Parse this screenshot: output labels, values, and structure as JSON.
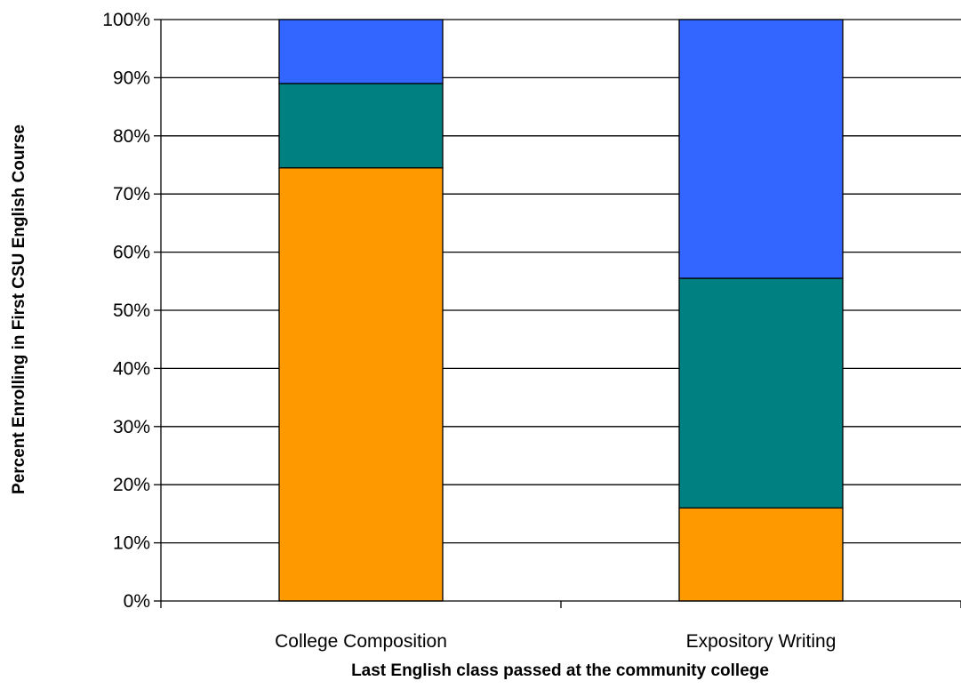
{
  "chart_data": {
    "type": "bar",
    "stacked": true,
    "normalized": true,
    "title": "",
    "xlabel": "Last English class passed at the community college",
    "ylabel": "Percent Enrolling in First CSU English Course",
    "ylim": [
      0,
      100
    ],
    "yticks": [
      "0%",
      "10%",
      "20%",
      "30%",
      "40%",
      "50%",
      "60%",
      "70%",
      "80%",
      "90%",
      "100%"
    ],
    "grid": true,
    "legend": "none",
    "categories": [
      "College Composition",
      "Expository Writing"
    ],
    "series": [
      {
        "color": "#ff9900",
        "values": [
          74.5,
          16
        ]
      },
      {
        "color": "#008080",
        "values": [
          14.5,
          39.5
        ]
      },
      {
        "color": "#3366ff",
        "values": [
          11,
          44.5
        ]
      }
    ]
  }
}
